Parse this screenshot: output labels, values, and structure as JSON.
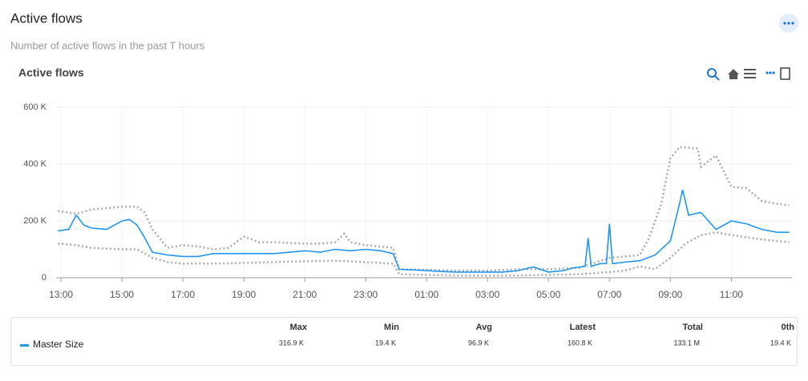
{
  "header": {
    "title": "Active flows",
    "subtitle": "Number of active flows in the past T hours"
  },
  "chart_data": {
    "type": "line",
    "title": "Active flows",
    "xlim": [
      12.84,
      36.99
    ],
    "xticks": [
      {
        "value": 13,
        "label": "13:00"
      },
      {
        "value": 15,
        "label": "15:00"
      },
      {
        "value": 17,
        "label": "17:00"
      },
      {
        "value": 19,
        "label": "19:00"
      },
      {
        "value": 21,
        "label": "21:00"
      },
      {
        "value": 23,
        "label": "23:00"
      },
      {
        "value": 25,
        "label": "01:00"
      },
      {
        "value": 27,
        "label": "03:00"
      },
      {
        "value": 29,
        "label": "05:00"
      },
      {
        "value": 31,
        "label": "07:00"
      },
      {
        "value": 33,
        "label": "09:00"
      },
      {
        "value": 35,
        "label": "11:00"
      }
    ],
    "ylim": [
      0,
      600000
    ],
    "yticks": [
      0,
      {
        "value": 200000,
        "label": "200 K"
      },
      {
        "value": 400000,
        "label": "400 K"
      },
      {
        "value": 600000,
        "label": "600 K"
      }
    ],
    "grid": true,
    "series": [
      {
        "color": "#aaaaaa",
        "dashed": true,
        "x": [
          12.9,
          13.5,
          14,
          14.5,
          15,
          15.5,
          15.75,
          16,
          16.5,
          17,
          17.5,
          18,
          18.5,
          19,
          19.5,
          20,
          21,
          21.5,
          22,
          22.3,
          22.5,
          23,
          23.9,
          24.1,
          25,
          26,
          27,
          28,
          29,
          30,
          31,
          32,
          32.3,
          32.7,
          33,
          33.3,
          33.9,
          34,
          34.5,
          35,
          35.5,
          36,
          36.5,
          36.9
        ],
        "values": [
          235000,
          225000,
          240000,
          245000,
          250000,
          250000,
          230000,
          170000,
          105000,
          115000,
          110000,
          100000,
          105000,
          145000,
          125000,
          125000,
          120000,
          120000,
          125000,
          155000,
          125000,
          115000,
          105000,
          30000,
          28000,
          25000,
          25000,
          30000,
          30000,
          35000,
          70000,
          80000,
          140000,
          260000,
          420000,
          460000,
          455000,
          390000,
          430000,
          320000,
          315000,
          270000,
          260000,
          255000
        ]
      },
      {
        "color": "#aaaaaa",
        "dashed": true,
        "x": [
          12.9,
          13.5,
          14,
          15,
          15.5,
          16,
          16.5,
          17,
          18,
          19,
          20,
          21,
          22,
          23,
          23.9,
          24.1,
          25,
          26,
          27,
          28,
          29,
          30,
          31,
          31.5,
          32,
          32.5,
          33,
          33.5,
          34,
          34.5,
          35,
          36,
          36.9
        ],
        "values": [
          120000,
          115000,
          105000,
          100000,
          100000,
          70000,
          55000,
          50000,
          50000,
          52000,
          55000,
          58000,
          60000,
          55000,
          50000,
          12000,
          10000,
          8000,
          8000,
          8000,
          10000,
          12000,
          20000,
          25000,
          40000,
          30000,
          70000,
          120000,
          150000,
          160000,
          150000,
          135000,
          125000
        ]
      },
      {
        "name": "Master Size",
        "color": "#2196f3",
        "x": [
          12.9,
          13.25,
          13.5,
          13.75,
          14,
          14.5,
          15,
          15.25,
          15.5,
          15.75,
          16,
          16.5,
          17,
          17.5,
          18,
          18.5,
          19,
          19.5,
          20,
          20.5,
          21,
          21.5,
          22,
          22.5,
          23,
          23.5,
          23.9,
          24.1,
          24.5,
          25,
          25.5,
          26,
          26.5,
          27,
          27.5,
          28,
          28.5,
          29,
          29.5,
          29.8,
          30.2,
          30.3,
          30.4,
          30.7,
          30.9,
          31,
          31.1,
          31.5,
          32,
          32.5,
          33,
          33.3,
          33.4,
          33.6,
          34,
          34.5,
          35,
          35.5,
          36,
          36.5,
          36.9
        ],
        "values": [
          165000,
          170000,
          220000,
          185000,
          175000,
          170000,
          200000,
          205000,
          185000,
          140000,
          90000,
          80000,
          75000,
          75000,
          85000,
          85000,
          85000,
          85000,
          85000,
          90000,
          95000,
          90000,
          100000,
          95000,
          100000,
          95000,
          85000,
          30000,
          28000,
          25000,
          22000,
          20000,
          20000,
          20000,
          20000,
          25000,
          38000,
          20000,
          25000,
          35000,
          40000,
          140000,
          40000,
          50000,
          50000,
          190000,
          50000,
          55000,
          60000,
          80000,
          130000,
          260000,
          310000,
          220000,
          230000,
          170000,
          200000,
          190000,
          170000,
          160000,
          160000
        ]
      }
    ]
  },
  "stats": {
    "columns": [
      "Max",
      "Min",
      "Avg",
      "Latest",
      "Total",
      "0th"
    ],
    "values": [
      "316.9 K",
      "19.4 K",
      "96.9 K",
      "160.8 K",
      "133.1 M",
      "19.4 K"
    ]
  }
}
